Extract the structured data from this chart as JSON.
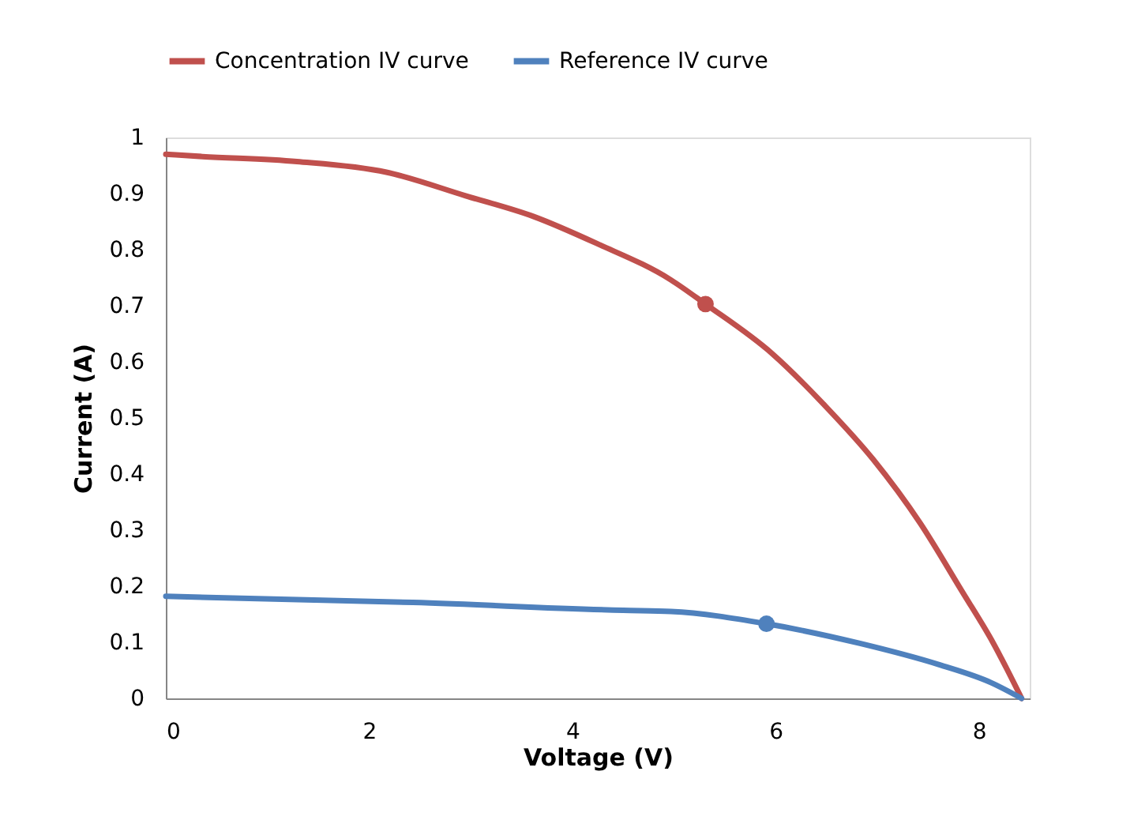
{
  "chart_data": {
    "type": "line",
    "xlabel": "Voltage (V)",
    "ylabel": "Current (A)",
    "xlim": [
      0,
      8.5
    ],
    "xticks": [
      0,
      2,
      4,
      6,
      8
    ],
    "ylim": [
      0,
      1
    ],
    "yticks": [
      0,
      0.1,
      0.2,
      0.3,
      0.4,
      0.5,
      0.6,
      0.7,
      0.8,
      0.9,
      1
    ],
    "grid": false,
    "legend": "top",
    "marker": "none",
    "line_style": "solid",
    "series": [
      {
        "name": "Concentration IV curve",
        "color": "#c0504d",
        "x": [
          0,
          0.36,
          1.29,
          2.17,
          2.95,
          3.62,
          4.24,
          4.97,
          5.31,
          5.97,
          6.49,
          6.96,
          7.42,
          7.83,
          8.14,
          8.42
        ],
        "values": [
          0.97,
          0.966,
          0.957,
          0.938,
          0.896,
          0.859,
          0.811,
          0.746,
          0.703,
          0.614,
          0.521,
          0.426,
          0.313,
          0.192,
          0.099,
          0
        ]
      },
      {
        "name": "Reference IV curve",
        "color": "#4f81bd",
        "x": [
          0,
          2.43,
          4.5,
          4.97,
          5.91,
          6.83,
          7.61,
          8.12,
          8.42
        ],
        "values": [
          0.182,
          0.171,
          0.157,
          0.155,
          0.133,
          0.098,
          0.06,
          0.028,
          0
        ]
      },
      {
        "type": "scatter",
        "marker": "circle",
        "color": "#c0504d",
        "x": [
          5.31
        ],
        "values": [
          0.703
        ]
      },
      {
        "type": "scatter",
        "marker": "circle",
        "color": "#4f81bd",
        "x": [
          5.91
        ],
        "values": [
          0.133
        ]
      }
    ]
  }
}
